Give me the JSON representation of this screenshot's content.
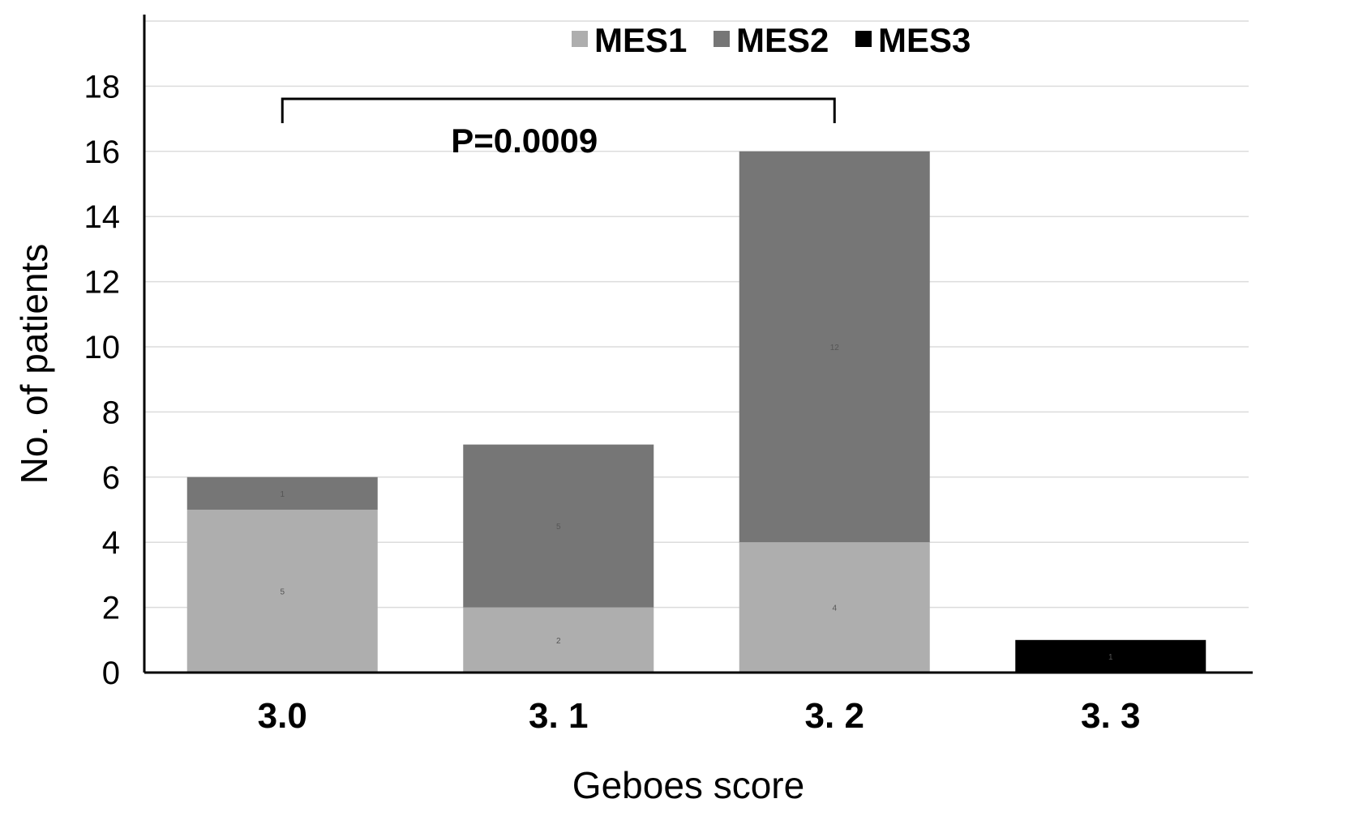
{
  "chart_data": {
    "type": "bar",
    "stacked": true,
    "title": "",
    "xlabel": "Geboes score",
    "ylabel": "No. of patients",
    "categories": [
      "3.0",
      "3. 1",
      "3. 2",
      "3. 3"
    ],
    "series": [
      {
        "name": "MES1",
        "color": "#aeaeae",
        "values": [
          5,
          2,
          4,
          0
        ]
      },
      {
        "name": "MES2",
        "color": "#767676",
        "values": [
          1,
          5,
          12,
          0
        ]
      },
      {
        "name": "MES3",
        "color": "#000000",
        "values": [
          0,
          0,
          0,
          1
        ]
      }
    ],
    "totals": [
      6,
      7,
      16,
      1
    ],
    "ylim": [
      0,
      20
    ],
    "yticks": [
      0,
      2,
      4,
      6,
      8,
      10,
      12,
      14,
      16,
      18
    ],
    "grid": true,
    "legend_position": "top",
    "annotation": {
      "text": "P=0.0009",
      "from_category": "3.0",
      "to_category": "3. 2"
    }
  }
}
